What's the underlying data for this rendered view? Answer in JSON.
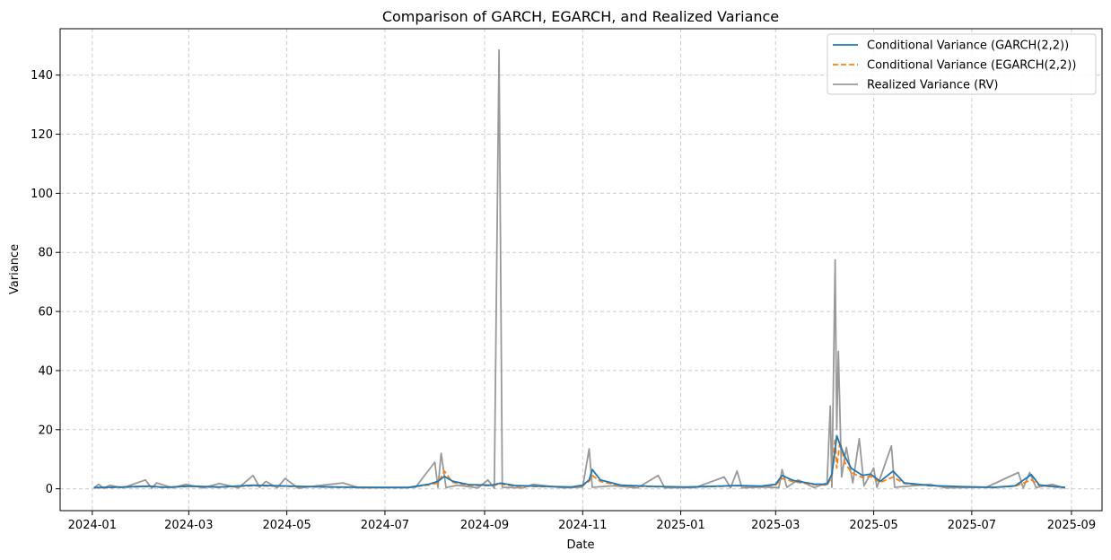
{
  "chart_data": {
    "type": "line",
    "title": "Comparison of GARCH, EGARCH, and Realized Variance",
    "xlabel": "Date",
    "ylabel": "Variance",
    "xlim": [
      "2023-12-12",
      "2025-09-20"
    ],
    "ylim": [
      -7.4,
      155.7
    ],
    "grid": true,
    "legend_position": "top-right",
    "x_ticks": [
      "2024-01-01",
      "2024-03-01",
      "2024-05-01",
      "2024-07-01",
      "2024-09-01",
      "2024-11-01",
      "2025-01-01",
      "2025-03-01",
      "2025-05-01",
      "2025-07-01",
      "2025-09-01"
    ],
    "x_tick_labels": [
      "2024-01",
      "2024-03",
      "2024-05",
      "2024-07",
      "2024-09",
      "2024-11",
      "2025-01",
      "2025-03",
      "2025-05",
      "2025-07",
      "2025-09"
    ],
    "y_ticks": [
      0,
      20,
      40,
      60,
      80,
      100,
      120,
      140
    ],
    "y_tick_labels": [
      "0",
      "20",
      "40",
      "60",
      "80",
      "100",
      "120",
      "140"
    ],
    "series": [
      {
        "name": "Conditional Variance (GARCH(2,2))",
        "color": "#1f77b4",
        "style": "solid",
        "points": [
          [
            "2024-01-02",
            0.4
          ],
          [
            "2024-01-20",
            0.6
          ],
          [
            "2024-02-05",
            0.9
          ],
          [
            "2024-02-15",
            0.5
          ],
          [
            "2024-03-01",
            0.9
          ],
          [
            "2024-03-20",
            0.6
          ],
          [
            "2024-04-10",
            1.2
          ],
          [
            "2024-04-25",
            1.0
          ],
          [
            "2024-05-10",
            0.8
          ],
          [
            "2024-06-01",
            0.6
          ],
          [
            "2024-06-20",
            0.5
          ],
          [
            "2024-07-15",
            0.4
          ],
          [
            "2024-07-28",
            1.5
          ],
          [
            "2024-08-03",
            2.5
          ],
          [
            "2024-08-07",
            4.2
          ],
          [
            "2024-08-12",
            2.6
          ],
          [
            "2024-08-22",
            1.4
          ],
          [
            "2024-09-05",
            1.2
          ],
          [
            "2024-09-11",
            1.9
          ],
          [
            "2024-09-20",
            1.1
          ],
          [
            "2024-10-10",
            0.8
          ],
          [
            "2024-10-25",
            0.6
          ],
          [
            "2024-11-01",
            1.2
          ],
          [
            "2024-11-05",
            3.0
          ],
          [
            "2024-11-07",
            6.5
          ],
          [
            "2024-11-12",
            3.0
          ],
          [
            "2024-11-25",
            1.2
          ],
          [
            "2024-12-15",
            0.8
          ],
          [
            "2025-01-05",
            0.6
          ],
          [
            "2025-01-25",
            0.9
          ],
          [
            "2025-02-05",
            1.1
          ],
          [
            "2025-02-20",
            0.9
          ],
          [
            "2025-03-01",
            1.5
          ],
          [
            "2025-03-05",
            4.5
          ],
          [
            "2025-03-12",
            2.8
          ],
          [
            "2025-03-25",
            1.6
          ],
          [
            "2025-04-02",
            1.5
          ],
          [
            "2025-04-05",
            5.0
          ],
          [
            "2025-04-07",
            13.0
          ],
          [
            "2025-04-08",
            18.0
          ],
          [
            "2025-04-10",
            15.0
          ],
          [
            "2025-04-13",
            11.0
          ],
          [
            "2025-04-17",
            7.0
          ],
          [
            "2025-04-24",
            4.5
          ],
          [
            "2025-04-29",
            5.0
          ],
          [
            "2025-05-05",
            2.5
          ],
          [
            "2025-05-13",
            6.0
          ],
          [
            "2025-05-20",
            2.0
          ],
          [
            "2025-06-05",
            1.1
          ],
          [
            "2025-06-25",
            0.7
          ],
          [
            "2025-07-15",
            0.5
          ],
          [
            "2025-07-28",
            1.0
          ],
          [
            "2025-08-07",
            4.8
          ],
          [
            "2025-08-12",
            1.3
          ],
          [
            "2025-08-22",
            0.7
          ],
          [
            "2025-08-28",
            0.5
          ]
        ]
      },
      {
        "name": "Conditional Variance (EGARCH(2,2))",
        "color": "#ff7f0e",
        "style": "dashed",
        "points": [
          [
            "2024-01-02",
            0.3
          ],
          [
            "2024-01-20",
            0.5
          ],
          [
            "2024-02-05",
            0.8
          ],
          [
            "2024-02-15",
            0.4
          ],
          [
            "2024-03-01",
            0.8
          ],
          [
            "2024-03-20",
            0.5
          ],
          [
            "2024-04-10",
            1.0
          ],
          [
            "2024-04-25",
            0.9
          ],
          [
            "2024-05-10",
            0.7
          ],
          [
            "2024-06-01",
            0.5
          ],
          [
            "2024-06-20",
            0.4
          ],
          [
            "2024-07-15",
            0.4
          ],
          [
            "2024-07-28",
            1.3
          ],
          [
            "2024-08-03",
            2.0
          ],
          [
            "2024-08-07",
            6.0
          ],
          [
            "2024-08-12",
            2.2
          ],
          [
            "2024-08-22",
            1.2
          ],
          [
            "2024-09-05",
            1.0
          ],
          [
            "2024-09-11",
            1.6
          ],
          [
            "2024-09-20",
            0.9
          ],
          [
            "2024-10-10",
            0.7
          ],
          [
            "2024-10-25",
            0.5
          ],
          [
            "2024-11-01",
            1.0
          ],
          [
            "2024-11-05",
            2.6
          ],
          [
            "2024-11-07",
            4.5
          ],
          [
            "2024-11-12",
            2.5
          ],
          [
            "2024-11-25",
            1.0
          ],
          [
            "2024-12-15",
            0.7
          ],
          [
            "2025-01-05",
            0.5
          ],
          [
            "2025-01-25",
            0.8
          ],
          [
            "2025-02-05",
            1.0
          ],
          [
            "2025-02-20",
            0.8
          ],
          [
            "2025-03-01",
            1.3
          ],
          [
            "2025-03-05",
            3.5
          ],
          [
            "2025-03-12",
            2.4
          ],
          [
            "2025-03-25",
            1.4
          ],
          [
            "2025-04-02",
            1.3
          ],
          [
            "2025-04-05",
            4.0
          ],
          [
            "2025-04-07",
            17.0
          ],
          [
            "2025-04-08",
            7.0
          ],
          [
            "2025-04-10",
            16.0
          ],
          [
            "2025-04-13",
            9.0
          ],
          [
            "2025-04-17",
            5.5
          ],
          [
            "2025-04-24",
            3.8
          ],
          [
            "2025-04-29",
            4.2
          ],
          [
            "2025-05-05",
            2.1
          ],
          [
            "2025-05-13",
            4.0
          ],
          [
            "2025-05-20",
            1.8
          ],
          [
            "2025-06-05",
            1.0
          ],
          [
            "2025-06-25",
            0.6
          ],
          [
            "2025-07-15",
            0.4
          ],
          [
            "2025-07-28",
            0.9
          ],
          [
            "2025-08-07",
            3.0
          ],
          [
            "2025-08-12",
            1.1
          ],
          [
            "2025-08-22",
            0.6
          ],
          [
            "2025-08-28",
            0.4
          ]
        ]
      },
      {
        "name": "Realized Variance (RV)",
        "color": "#999999",
        "style": "solid",
        "points": [
          [
            "2024-01-02",
            0.3
          ],
          [
            "2024-01-05",
            1.5
          ],
          [
            "2024-01-08",
            0.2
          ],
          [
            "2024-01-12",
            1.2
          ],
          [
            "2024-01-20",
            0.3
          ],
          [
            "2024-02-03",
            3.0
          ],
          [
            "2024-02-07",
            0.2
          ],
          [
            "2024-02-10",
            2.0
          ],
          [
            "2024-02-20",
            0.3
          ],
          [
            "2024-02-28",
            1.5
          ],
          [
            "2024-03-10",
            0.3
          ],
          [
            "2024-03-20",
            1.8
          ],
          [
            "2024-04-01",
            0.3
          ],
          [
            "2024-04-10",
            4.5
          ],
          [
            "2024-04-14",
            0.5
          ],
          [
            "2024-04-18",
            2.5
          ],
          [
            "2024-04-25",
            0.3
          ],
          [
            "2024-04-30",
            3.5
          ],
          [
            "2024-05-08",
            0.2
          ],
          [
            "2024-05-20",
            1.0
          ],
          [
            "2024-06-05",
            2.0
          ],
          [
            "2024-06-15",
            0.3
          ],
          [
            "2024-07-01",
            0.4
          ],
          [
            "2024-07-20",
            0.5
          ],
          [
            "2024-08-01",
            9.0
          ],
          [
            "2024-08-03",
            0.5
          ],
          [
            "2024-08-05",
            12.0
          ],
          [
            "2024-08-08",
            0.4
          ],
          [
            "2024-08-15",
            1.2
          ],
          [
            "2024-08-28",
            0.3
          ],
          [
            "2024-09-03",
            3.0
          ],
          [
            "2024-09-07",
            0.2
          ],
          [
            "2024-09-10",
            148.5
          ],
          [
            "2024-09-12",
            0.5
          ],
          [
            "2024-09-25",
            0.3
          ],
          [
            "2024-10-01",
            1.5
          ],
          [
            "2024-10-20",
            0.3
          ],
          [
            "2024-11-01",
            0.6
          ],
          [
            "2024-11-05",
            13.5
          ],
          [
            "2024-11-07",
            0.5
          ],
          [
            "2024-11-20",
            1.0
          ],
          [
            "2024-12-05",
            0.3
          ],
          [
            "2024-12-18",
            4.5
          ],
          [
            "2024-12-22",
            0.3
          ],
          [
            "2025-01-10",
            0.4
          ],
          [
            "2025-01-28",
            4.0
          ],
          [
            "2025-02-01",
            0.3
          ],
          [
            "2025-02-05",
            6.0
          ],
          [
            "2025-02-08",
            0.3
          ],
          [
            "2025-02-20",
            0.6
          ],
          [
            "2025-03-03",
            0.4
          ],
          [
            "2025-03-05",
            6.5
          ],
          [
            "2025-03-08",
            0.5
          ],
          [
            "2025-03-15",
            3.0
          ],
          [
            "2025-03-25",
            0.4
          ],
          [
            "2025-04-02",
            2.0
          ],
          [
            "2025-04-04",
            28.0
          ],
          [
            "2025-04-05",
            0.5
          ],
          [
            "2025-04-07",
            77.5
          ],
          [
            "2025-04-08",
            20.0
          ],
          [
            "2025-04-09",
            46.5
          ],
          [
            "2025-04-11",
            4.0
          ],
          [
            "2025-04-14",
            14.0
          ],
          [
            "2025-04-18",
            2.0
          ],
          [
            "2025-04-22",
            17.0
          ],
          [
            "2025-04-25",
            1.0
          ],
          [
            "2025-05-01",
            7.0
          ],
          [
            "2025-05-03",
            0.5
          ],
          [
            "2025-05-12",
            14.5
          ],
          [
            "2025-05-14",
            0.5
          ],
          [
            "2025-05-25",
            1.0
          ],
          [
            "2025-06-05",
            1.5
          ],
          [
            "2025-06-15",
            0.3
          ],
          [
            "2025-07-10",
            0.5
          ],
          [
            "2025-07-30",
            5.5
          ],
          [
            "2025-08-02",
            0.3
          ],
          [
            "2025-08-06",
            5.5
          ],
          [
            "2025-08-10",
            0.4
          ],
          [
            "2025-08-20",
            1.5
          ],
          [
            "2025-08-28",
            0.2
          ]
        ]
      }
    ]
  }
}
